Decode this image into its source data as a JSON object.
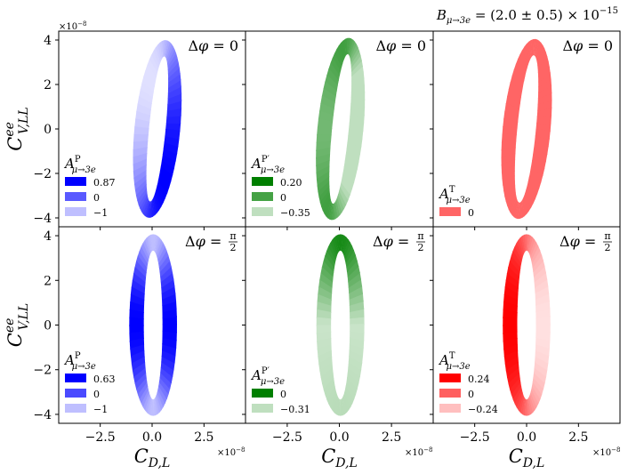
{
  "figure_title": "B_{μ→3e} = (2.0 ± 0.5) × 10^{−15}",
  "figure_title_parts": {
    "base": "B",
    "sub": "μ→3e",
    "rest": " = (2.0 ± 0.5) × 10",
    "exp": "−15"
  },
  "y_axis_label": {
    "base": "C",
    "sup": "ee",
    "sub": "V,LL"
  },
  "x_axis_label": {
    "base": "C",
    "sub": "D,L"
  },
  "x_scale": "×10^{−8}",
  "y_scale": "×10^{−8}",
  "scale_parts": {
    "base": "×10",
    "exp": "−8"
  },
  "chart_data": [
    {
      "type": "scatter",
      "panel": "row1-col1",
      "title": "Δφ = 0",
      "dphi": "0",
      "color": "#0000ff",
      "legend_symbol": "P",
      "legend_title": "A^{P}_{μ→3e}",
      "legend": [
        "0.87",
        "0",
        "−1"
      ],
      "legend_levels": [
        0.87,
        0,
        -1
      ],
      "xlim": [
        -4.5,
        4.5
      ],
      "ylim": [
        -4.4,
        4.4
      ],
      "x_ticks": [
        "−2.5",
        "0.0",
        "2.5"
      ],
      "y_ticks": [
        "−4",
        "−2",
        "0",
        "2",
        "4"
      ],
      "ring": {
        "center": [
          0.25,
          0.0
        ],
        "half_height": 3.65,
        "half_width": 0.75,
        "thickness": 0.35,
        "tilt_deg": 6
      },
      "value_profile": {
        "min": -1,
        "max": 0.87,
        "trend": "lowest near top/left, highest on lower right"
      }
    },
    {
      "type": "scatter",
      "panel": "row1-col2",
      "title": "Δφ = 0",
      "dphi": "0",
      "color": "#007f00",
      "legend_symbol": "P′",
      "legend_title": "A^{P′}_{μ→3e}",
      "legend": [
        "0.20",
        "0",
        "−0.35"
      ],
      "legend_levels": [
        0.2,
        0,
        -0.35
      ],
      "xlim": [
        -4.5,
        4.5
      ],
      "ylim": [
        -4.4,
        4.4
      ],
      "x_ticks": [
        "−2.5",
        "0.0",
        "2.5"
      ],
      "y_ticks": [],
      "ring": {
        "center": [
          0.05,
          0.0
        ],
        "half_height": 3.75,
        "half_width": 0.75,
        "thickness": 0.35,
        "tilt_deg": 6
      },
      "value_profile": {
        "min": -0.35,
        "max": 0.2,
        "trend": "highest on top-left and bottom, lowest on right side"
      }
    },
    {
      "type": "scatter",
      "panel": "row1-col3",
      "title": "Δφ = 0",
      "dphi": "0",
      "color": "#ff0000",
      "legend_symbol": "T",
      "legend_title": "A^{T}_{μ→3e}",
      "legend": [
        "0"
      ],
      "legend_levels": [
        0
      ],
      "xlim": [
        -4.5,
        4.5
      ],
      "ylim": [
        -4.4,
        4.4
      ],
      "x_ticks": [
        "−2.5",
        "0.0",
        "2.5"
      ],
      "y_ticks": [],
      "ring": {
        "center": [
          0.0,
          0.0
        ],
        "half_height": 3.7,
        "half_width": 0.8,
        "thickness": 0.35,
        "tilt_deg": 6
      },
      "value_profile": {
        "min": 0,
        "max": 0,
        "trend": "uniform"
      }
    },
    {
      "type": "scatter",
      "panel": "row2-col1",
      "title": "Δφ = π/2",
      "dphi": "π/2",
      "color": "#0000ff",
      "legend_symbol": "P",
      "legend_title": "A^{P}_{μ→3e}",
      "legend": [
        "0.63",
        "0",
        "−1"
      ],
      "legend_levels": [
        0.63,
        0,
        -1
      ],
      "xlim": [
        -4.5,
        4.5
      ],
      "ylim": [
        -4.4,
        4.4
      ],
      "x_ticks": [
        "−2.5",
        "0.0",
        "2.5"
      ],
      "y_ticks": [
        "−4",
        "−2",
        "0",
        "2",
        "4"
      ],
      "ring": {
        "center": [
          0.05,
          0.0
        ],
        "half_height": 3.7,
        "half_width": 0.8,
        "thickness": 0.35,
        "tilt_deg": 0
      },
      "value_profile": {
        "min": -1,
        "max": 0.63,
        "trend": "lowest at top and bottom, highest at sides"
      }
    },
    {
      "type": "scatter",
      "panel": "row2-col2",
      "title": "Δφ = π/2",
      "dphi": "π/2",
      "color": "#007f00",
      "legend_symbol": "P′",
      "legend_title": "A^{P′}_{μ→3e}",
      "legend": [
        "0",
        "−0.31"
      ],
      "legend_levels": [
        0,
        -0.31
      ],
      "xlim": [
        -4.5,
        4.5
      ],
      "ylim": [
        -4.4,
        4.4
      ],
      "x_ticks": [
        "−2.5",
        "0.0",
        "2.5"
      ],
      "y_ticks": [],
      "ring": {
        "center": [
          0.05,
          0.0
        ],
        "half_height": 3.7,
        "half_width": 0.8,
        "thickness": 0.35,
        "tilt_deg": 0
      },
      "value_profile": {
        "min": -0.31,
        "max": 0,
        "trend": "highest at top, lowest at left/bottom"
      }
    },
    {
      "type": "scatter",
      "panel": "row2-col3",
      "title": "Δφ = π/2",
      "dphi": "π/2",
      "color": "#ff0000",
      "legend_symbol": "T",
      "legend_title": "A^{T}_{μ→3e}",
      "legend": [
        "0.24",
        "0",
        "−0.24"
      ],
      "legend_levels": [
        0.24,
        0,
        -0.24
      ],
      "xlim": [
        -4.5,
        4.5
      ],
      "ylim": [
        -4.4,
        4.4
      ],
      "x_ticks": [
        "−2.5",
        "0.0",
        "2.5"
      ],
      "y_ticks": [],
      "ring": {
        "center": [
          0.0,
          0.0
        ],
        "half_height": 3.7,
        "half_width": 0.8,
        "thickness": 0.35,
        "tilt_deg": 0
      },
      "value_profile": {
        "min": -0.24,
        "max": 0.24,
        "trend": "highest on left, lowest on right"
      }
    }
  ]
}
